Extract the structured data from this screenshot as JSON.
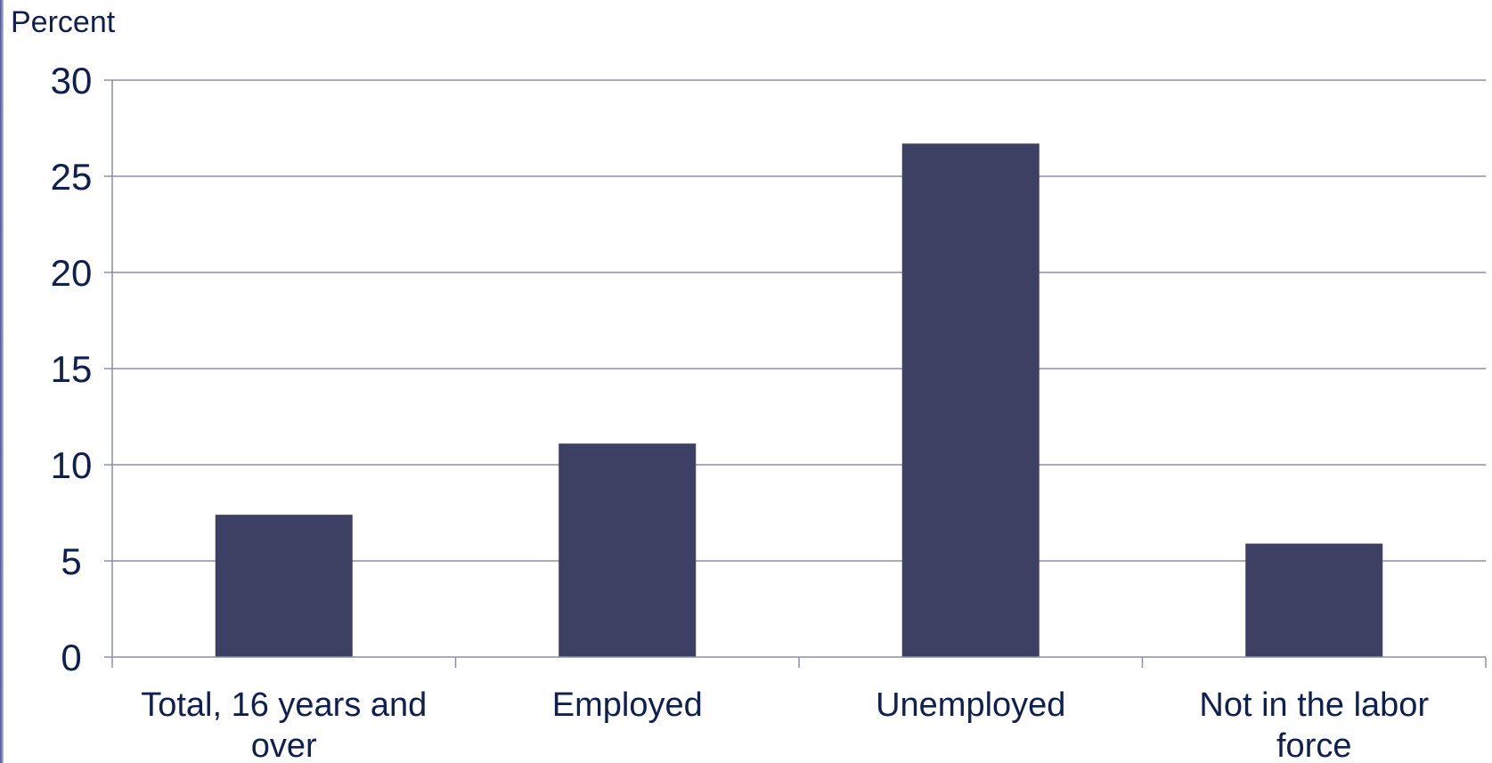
{
  "chart_data": {
    "type": "bar",
    "ylabel": "Percent",
    "xlabel": "",
    "title": "",
    "categories": [
      [
        "Total, 16 years and",
        "over"
      ],
      [
        "Employed"
      ],
      [
        "Unemployed"
      ],
      [
        "Not in the labor",
        "force"
      ]
    ],
    "values": [
      7.4,
      11.1,
      26.7,
      5.9
    ],
    "ylim": [
      0,
      30
    ],
    "yticks": [
      0,
      5,
      10,
      15,
      20,
      25,
      30
    ],
    "grid": true,
    "legend": "none",
    "colors": {
      "bar": "#3d3f63",
      "grid": "#8c8fa8",
      "axis": "#8c8fa8",
      "text": "#0f1f4f"
    }
  }
}
